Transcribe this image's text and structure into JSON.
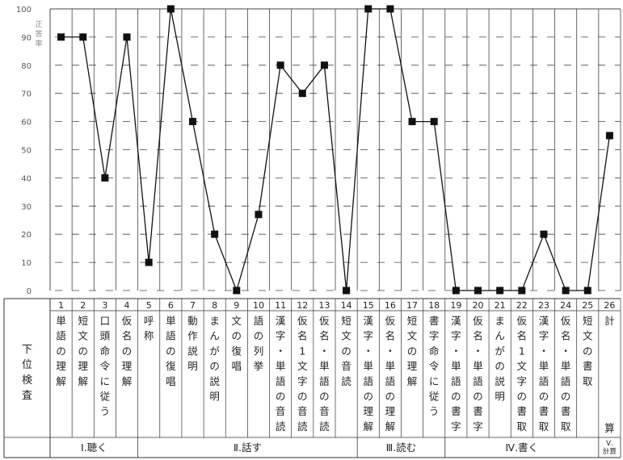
{
  "chart_data": {
    "type": "line",
    "ylabel": "正答率",
    "ylim": [
      0,
      100
    ],
    "yticks": [
      0,
      10,
      20,
      30,
      40,
      50,
      60,
      70,
      80,
      90,
      100
    ],
    "grid": true,
    "categories": [
      {
        "no": "1",
        "label": "単語の理解"
      },
      {
        "no": "2",
        "label": "短文の理解"
      },
      {
        "no": "3",
        "label": "口頭命令に従う"
      },
      {
        "no": "4",
        "label": "仮名の理解"
      },
      {
        "no": "5",
        "label": "呼称"
      },
      {
        "no": "6",
        "label": "単語の復唱"
      },
      {
        "no": "7",
        "label": "動作説明"
      },
      {
        "no": "8",
        "label": "まんがの説明"
      },
      {
        "no": "9",
        "label": "文の復唱"
      },
      {
        "no": "10",
        "label": "語の列挙"
      },
      {
        "no": "11",
        "label": "漢字・単語の音読"
      },
      {
        "no": "12",
        "label": "仮名1文字の音読"
      },
      {
        "no": "13",
        "label": "仮名・単語の音読"
      },
      {
        "no": "14",
        "label": "短文の音読"
      },
      {
        "no": "15",
        "label": "漢字・単語の理解"
      },
      {
        "no": "16",
        "label": "仮名・単語の理解"
      },
      {
        "no": "17",
        "label": "短文の理解"
      },
      {
        "no": "18",
        "label": "書字命令に従う"
      },
      {
        "no": "19",
        "label": "漢字・単語の書字"
      },
      {
        "no": "20",
        "label": "仮名・単語の書字"
      },
      {
        "no": "21",
        "label": "まんがの説明"
      },
      {
        "no": "22",
        "label": "仮名1文字の書取"
      },
      {
        "no": "23",
        "label": "漢字・単語の書取"
      },
      {
        "no": "24",
        "label": "仮名・単語の書取"
      },
      {
        "no": "25",
        "label": "短文の書取"
      },
      {
        "no": "26",
        "label": "計",
        "label2": "算"
      }
    ],
    "series": [
      {
        "values": [
          90,
          90,
          40,
          90,
          10,
          100,
          60,
          20,
          0,
          27,
          80,
          70,
          80,
          0,
          100,
          100,
          60,
          60,
          0,
          0,
          0,
          0,
          20,
          0,
          0,
          55
        ]
      }
    ],
    "row_header": "下位検査",
    "groups": [
      {
        "label": "Ⅰ.聴く",
        "start": 1,
        "end": 4
      },
      {
        "label": "Ⅱ.話す",
        "start": 5,
        "end": 14
      },
      {
        "label": "Ⅲ.読む",
        "start": 15,
        "end": 18
      },
      {
        "label": "Ⅳ.書く",
        "start": 19,
        "end": 25
      },
      {
        "label": "Ⅴ.",
        "label2": "計算",
        "start": 26,
        "end": 26
      }
    ],
    "colors": {
      "line": "#111111",
      "marker": "#111111",
      "grid": "#444444",
      "table": "#333333"
    }
  }
}
